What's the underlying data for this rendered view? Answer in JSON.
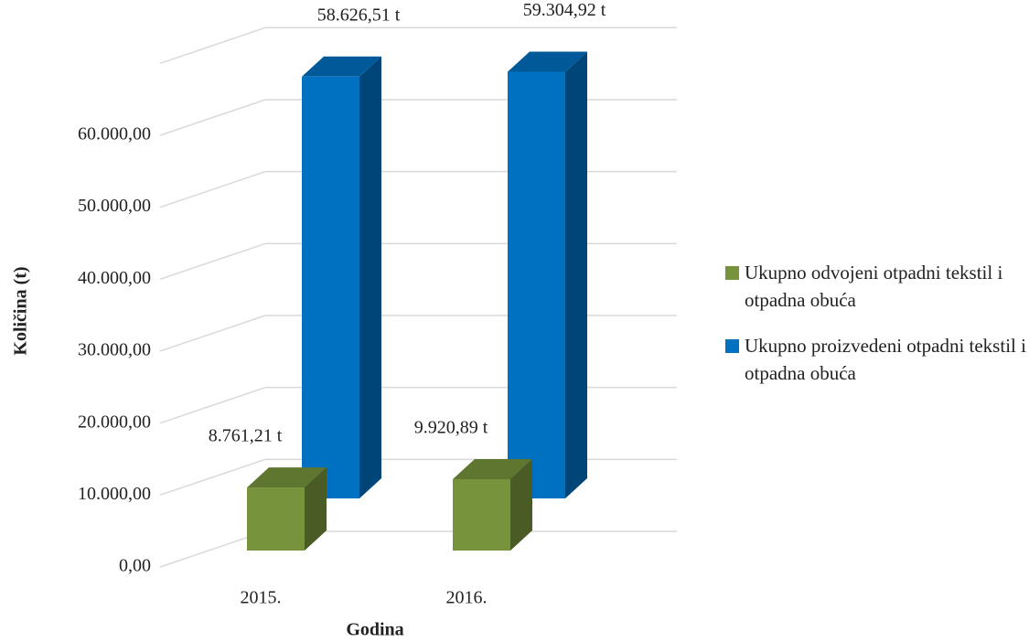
{
  "chart_data": {
    "type": "bar3d",
    "y_label": "Količina (t)",
    "x_label": "Godina",
    "categories": [
      "2015.",
      "2016."
    ],
    "series": [
      {
        "name": "Ukupno odvojeni otpadni tekstil i otpadna obuća",
        "color": "#77933c",
        "values": [
          8761.21,
          9920.89
        ],
        "value_labels": [
          "8.761,21 t",
          "9.920,89 t"
        ]
      },
      {
        "name": "Ukupno proizvedeni otpadni tekstil i otpadna obuća",
        "color": "#0070c0",
        "values": [
          58626.51,
          59304.92
        ],
        "value_labels": [
          "58.626,51 t",
          "59.304,92 t"
        ]
      }
    ],
    "ylim": [
      0,
      70000
    ],
    "yticks": [
      {
        "value": 0,
        "label": "0,00"
      },
      {
        "value": 10000,
        "label": "10.000,00"
      },
      {
        "value": 20000,
        "label": "20.000,00"
      },
      {
        "value": 30000,
        "label": "30.000,00"
      },
      {
        "value": 40000,
        "label": "40.000,00"
      },
      {
        "value": 50000,
        "label": "50.000,00"
      },
      {
        "value": 60000,
        "label": "60.000,00"
      }
    ],
    "grid": true,
    "legend": "right"
  }
}
